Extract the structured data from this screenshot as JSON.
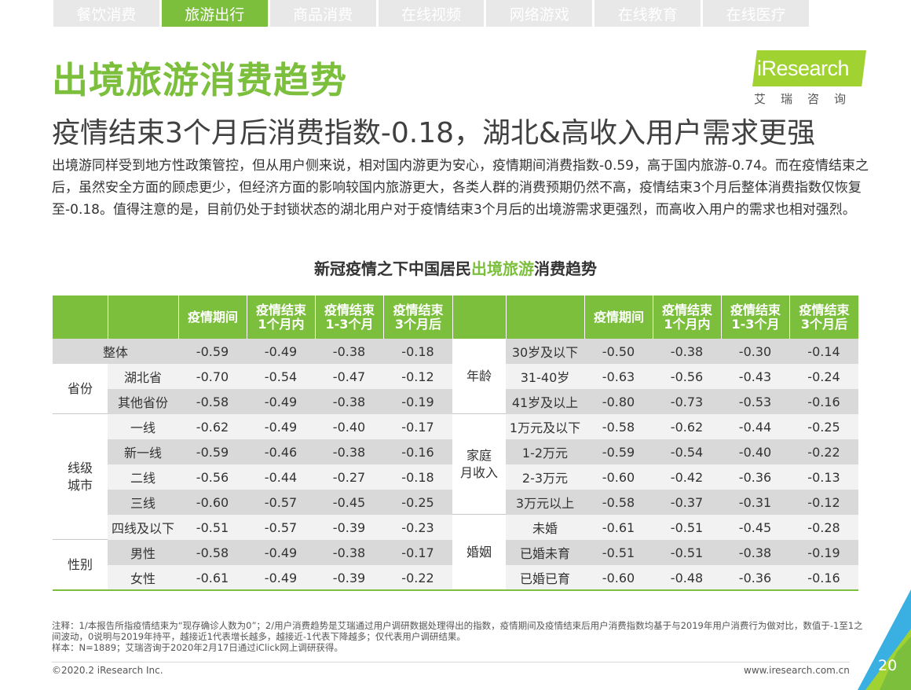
{
  "tabs": [
    "餐饮消费",
    "旅游出行",
    "商品消费",
    "在线视频",
    "网络游戏",
    "在线教育",
    "在线医疗"
  ],
  "active_tab": 1,
  "title": "出境旅游消费趋势",
  "subtitle": "疫情结束3个月后消费指数-0.18，湖北&高收入用户需求更强",
  "logo": {
    "word": "iResearch",
    "cn": "艾瑞咨询"
  },
  "paragraph": "出境游同样受到地方性政策管控，但从用户侧来说，相对国内游更为安心，疫情期间消费指数-0.59，高于国内旅游-0.74。而在疫情结束之后，虽然安全方面的顾虑更少，但经济方面的影响较国内旅游更大，各类人群的消费预期仍然不高，疫情结束3个月后整体消费指数仅恢复至-0.18。值得注意的是，目前仍处于封锁状态的湖北用户对于疫情结束3个月后的出境游需求更强烈，而高收入用户的需求也相对强烈。",
  "table_title": {
    "pre": "新冠疫情之下中国居民",
    "highlight": "出境旅游",
    "post": "消费趋势"
  },
  "table": {
    "columns": [
      "疫情期间",
      "疫情结束\n1个月内",
      "疫情结束\n1-3个月",
      "疫情结束\n3个月后"
    ],
    "overall": {
      "label": "整体",
      "values": [
        "-0.59",
        "-0.49",
        "-0.38",
        "-0.18"
      ]
    },
    "left_groups": [
      {
        "group": "省份",
        "rows": [
          {
            "label": "湖北省",
            "values": [
              "-0.70",
              "-0.54",
              "-0.47",
              "-0.12"
            ]
          },
          {
            "label": "其他省份",
            "values": [
              "-0.58",
              "-0.49",
              "-0.38",
              "-0.19"
            ]
          }
        ]
      },
      {
        "group": "线级\n城市",
        "rows": [
          {
            "label": "一线",
            "values": [
              "-0.62",
              "-0.49",
              "-0.40",
              "-0.17"
            ]
          },
          {
            "label": "新一线",
            "values": [
              "-0.59",
              "-0.46",
              "-0.38",
              "-0.16"
            ]
          },
          {
            "label": "二线",
            "values": [
              "-0.56",
              "-0.44",
              "-0.27",
              "-0.18"
            ]
          },
          {
            "label": "三线",
            "values": [
              "-0.60",
              "-0.57",
              "-0.45",
              "-0.25"
            ]
          },
          {
            "label": "四线及以下",
            "values": [
              "-0.51",
              "-0.57",
              "-0.39",
              "-0.23"
            ]
          }
        ]
      },
      {
        "group": "性别",
        "rows": [
          {
            "label": "男性",
            "values": [
              "-0.58",
              "-0.49",
              "-0.38",
              "-0.17"
            ]
          },
          {
            "label": "女性",
            "values": [
              "-0.61",
              "-0.49",
              "-0.39",
              "-0.22"
            ]
          }
        ]
      }
    ],
    "right_groups": [
      {
        "group": "年龄",
        "rows": [
          {
            "label": "30岁及以下",
            "values": [
              "-0.50",
              "-0.38",
              "-0.30",
              "-0.14"
            ]
          },
          {
            "label": "31-40岁",
            "values": [
              "-0.63",
              "-0.56",
              "-0.43",
              "-0.24"
            ]
          },
          {
            "label": "41岁及以上",
            "values": [
              "-0.80",
              "-0.73",
              "-0.53",
              "-0.16"
            ]
          }
        ]
      },
      {
        "group": "家庭\n月收入",
        "rows": [
          {
            "label": "1万元及以下",
            "values": [
              "-0.58",
              "-0.62",
              "-0.44",
              "-0.25"
            ]
          },
          {
            "label": "1-2万元",
            "values": [
              "-0.59",
              "-0.54",
              "-0.40",
              "-0.22"
            ]
          },
          {
            "label": "2-3万元",
            "values": [
              "-0.60",
              "-0.42",
              "-0.36",
              "-0.13"
            ]
          },
          {
            "label": "3万元以上",
            "values": [
              "-0.58",
              "-0.37",
              "-0.31",
              "-0.12"
            ]
          }
        ]
      },
      {
        "group": "婚姻",
        "rows": [
          {
            "label": "未婚",
            "values": [
              "-0.61",
              "-0.51",
              "-0.45",
              "-0.28"
            ]
          },
          {
            "label": "已婚未育",
            "values": [
              "-0.51",
              "-0.51",
              "-0.38",
              "-0.19"
            ]
          },
          {
            "label": "已婚已育",
            "values": [
              "-0.60",
              "-0.48",
              "-0.36",
              "-0.16"
            ]
          }
        ]
      }
    ]
  },
  "notes": [
    "注释：1/本报告所指疫情结束为“现存确诊人数为0”；2/用户消费趋势是艾瑞通过用户调研数据处理得出的指数，疫情期间及疫情结束后用户消费指数均基于与2019年用户消费行为做对比，数值于-1至1之间波动，0说明与2019年持平，越接近1代表增长越多，越接近-1代表下降越多；仅代表用户调研结果。",
    "样本：N=1889；艾瑞咨询于2020年2月17日通过iClick网上调研获得。"
  ],
  "footer": {
    "copyright": "©2020.2 iResearch Inc.",
    "website": "www.iresearch.com.cn",
    "page": "20"
  },
  "colors": {
    "brand_green": "#7cbf3c",
    "logo_green": "#a0d232",
    "corner_blue": "#3ab0e2"
  }
}
